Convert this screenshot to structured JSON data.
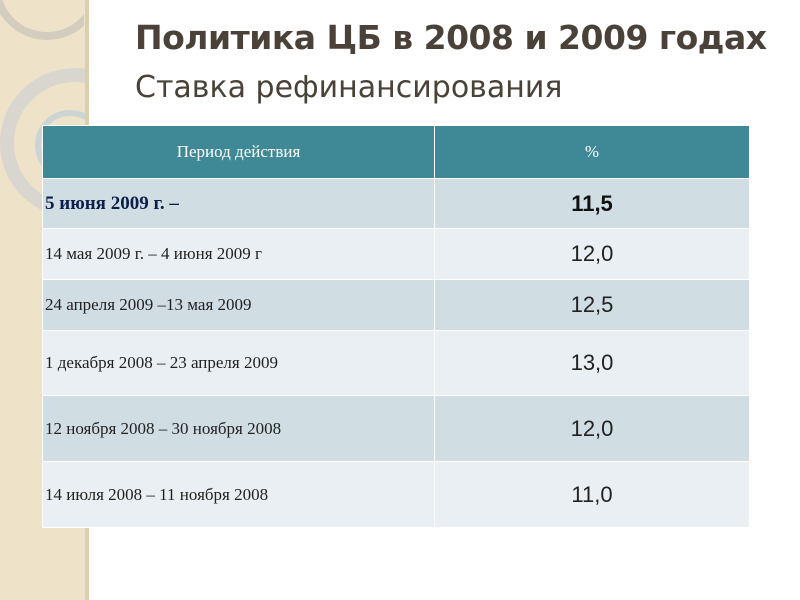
{
  "slide": {
    "title": "Политика ЦБ в 2008 и 2009 годах",
    "subtitle": "Ставка рефинансирования"
  },
  "table": {
    "headers": [
      "Период действия",
      "%"
    ],
    "rows": [
      {
        "period": "5 июня 2009 г. –",
        "value": "11,5"
      },
      {
        "period": "14 мая 2009 г. – 4 июня 2009 г",
        "value": "12,0"
      },
      {
        "period": "24 апреля 2009 –13 мая 2009",
        "value": "12,5"
      },
      {
        "period": "1 декабря 2008 – 23 апреля 2009",
        "value": "13,0"
      },
      {
        "period": "12 ноября 2008 – 30 ноября 2008",
        "value": "12,0"
      },
      {
        "period": "14 июля 2008 – 11 ноября 2008",
        "value": "11,0"
      }
    ]
  },
  "colors": {
    "header_bg": "#3f8997",
    "row_shade": "#d0dee3",
    "row_light": "#e9eff2",
    "title_text": "#4a4238",
    "side_band": "#eee3c9"
  }
}
